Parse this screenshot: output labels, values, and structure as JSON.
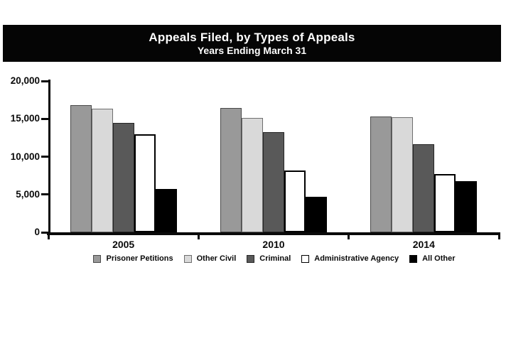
{
  "title": {
    "line1": "Appeals Filed, by Types of Appeals",
    "line2": "Years Ending March 31"
  },
  "chart_data": {
    "type": "bar",
    "title": "Appeals Filed, by Types of Appeals",
    "subtitle": "Years Ending March 31",
    "categories": [
      "2005",
      "2010",
      "2014"
    ],
    "series": [
      {
        "name": "Prisoner Petitions",
        "color": "#999999",
        "border": "#4a4a4a",
        "border_px": 1,
        "values": [
          16800,
          16400,
          15300
        ]
      },
      {
        "name": "Other Civil",
        "color": "#d9d9d9",
        "border": "#6e6e6e",
        "border_px": 1,
        "values": [
          16300,
          15100,
          15200
        ]
      },
      {
        "name": "Criminal",
        "color": "#595959",
        "border": "#262626",
        "border_px": 1,
        "values": [
          14500,
          13200,
          11600
        ]
      },
      {
        "name": "Administrative Agency",
        "color": "#ffffff",
        "border": "#000000",
        "border_px": 2,
        "values": [
          13000,
          8200,
          7700
        ]
      },
      {
        "name": "All Other",
        "color": "#000000",
        "border": "#000000",
        "border_px": 1,
        "values": [
          5700,
          4700,
          6800
        ]
      }
    ],
    "xlabel": "",
    "ylabel": "",
    "ylim": [
      0,
      20000
    ],
    "ytick_values": [
      0,
      5000,
      10000,
      15000,
      20000
    ],
    "ytick_labels": [
      "0",
      "5,000",
      "10,000",
      "15,000",
      "20,000"
    ],
    "grid": false,
    "legend_position": "bottom"
  }
}
